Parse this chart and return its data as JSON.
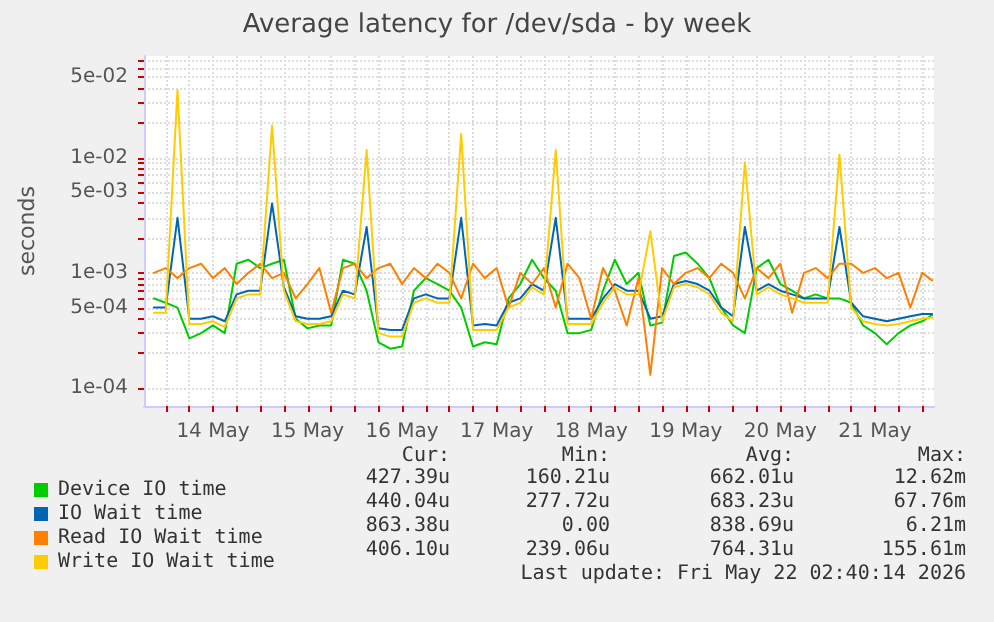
{
  "chart_data": {
    "type": "line",
    "title": "Average latency for /dev/sda - by week",
    "ylabel": "seconds",
    "log": "y",
    "grid": true,
    "legend": "bottom left",
    "marker": "none",
    "line_style": "solid",
    "xlim": [
      "2026-05-13T18:30",
      "2026-05-22T03:00"
    ],
    "xticks": [
      {
        "value": "2026-05-14T00:00",
        "label": null
      },
      {
        "value": "2026-05-14T06:00",
        "label": null
      },
      {
        "value": "2026-05-14T12:00",
        "label": "14 May"
      },
      {
        "value": "2026-05-14T18:00",
        "label": null
      },
      {
        "value": "2026-05-15T00:00",
        "label": null
      },
      {
        "value": "2026-05-15T06:00",
        "label": null
      },
      {
        "value": "2026-05-15T12:00",
        "label": "15 May"
      },
      {
        "value": "2026-05-15T18:00",
        "label": null
      },
      {
        "value": "2026-05-16T00:00",
        "label": null
      },
      {
        "value": "2026-05-16T06:00",
        "label": null
      },
      {
        "value": "2026-05-16T12:00",
        "label": "16 May"
      },
      {
        "value": "2026-05-16T18:00",
        "label": null
      },
      {
        "value": "2026-05-17T00:00",
        "label": null
      },
      {
        "value": "2026-05-17T06:00",
        "label": null
      },
      {
        "value": "2026-05-17T12:00",
        "label": "17 May"
      },
      {
        "value": "2026-05-17T18:00",
        "label": null
      },
      {
        "value": "2026-05-18T00:00",
        "label": null
      },
      {
        "value": "2026-05-18T06:00",
        "label": null
      },
      {
        "value": "2026-05-18T12:00",
        "label": "18 May"
      },
      {
        "value": "2026-05-18T18:00",
        "label": null
      },
      {
        "value": "2026-05-19T00:00",
        "label": null
      },
      {
        "value": "2026-05-19T06:00",
        "label": null
      },
      {
        "value": "2026-05-19T12:00",
        "label": "19 May"
      },
      {
        "value": "2026-05-19T18:00",
        "label": null
      },
      {
        "value": "2026-05-20T00:00",
        "label": null
      },
      {
        "value": "2026-05-20T06:00",
        "label": null
      },
      {
        "value": "2026-05-20T12:00",
        "label": "20 May"
      },
      {
        "value": "2026-05-20T18:00",
        "label": null
      },
      {
        "value": "2026-05-21T00:00",
        "label": null
      },
      {
        "value": "2026-05-21T06:00",
        "label": null
      },
      {
        "value": "2026-05-21T12:00",
        "label": "21 May"
      },
      {
        "value": "2026-05-21T18:00",
        "label": null
      },
      {
        "value": "2026-05-22T00:00",
        "label": null
      }
    ],
    "ylim": [
      7e-05,
      0.076
    ],
    "yticks": [
      {
        "value": 0.0001,
        "label": "1e-04"
      },
      {
        "value": 0.0002,
        "label": null
      },
      {
        "value": 0.0003,
        "label": null
      },
      {
        "value": 0.0004,
        "label": null
      },
      {
        "value": 0.0005,
        "label": "5e-04"
      },
      {
        "value": 0.0006,
        "label": null
      },
      {
        "value": 0.0007,
        "label": null
      },
      {
        "value": 0.0008,
        "label": null
      },
      {
        "value": 0.0009,
        "label": null
      },
      {
        "value": 0.001,
        "label": "1e-03"
      },
      {
        "value": 0.002,
        "label": null
      },
      {
        "value": 0.003,
        "label": null
      },
      {
        "value": 0.004,
        "label": null
      },
      {
        "value": 0.005,
        "label": "5e-03"
      },
      {
        "value": 0.006,
        "label": null
      },
      {
        "value": 0.007,
        "label": null
      },
      {
        "value": 0.008,
        "label": null
      },
      {
        "value": 0.009,
        "label": null
      },
      {
        "value": 0.01,
        "label": "1e-02"
      },
      {
        "value": 0.02,
        "label": null
      },
      {
        "value": 0.03,
        "label": null
      },
      {
        "value": 0.04,
        "label": null
      },
      {
        "value": 0.05,
        "label": "5e-02"
      },
      {
        "value": 0.06,
        "label": null
      },
      {
        "value": 0.07,
        "label": null
      }
    ],
    "x": [
      "2026-05-13T21:00",
      "2026-05-14T00:00",
      "2026-05-14T03:00",
      "2026-05-14T06:00",
      "2026-05-14T09:00",
      "2026-05-14T12:00",
      "2026-05-14T15:00",
      "2026-05-14T18:00",
      "2026-05-14T21:00",
      "2026-05-15T00:00",
      "2026-05-15T03:00",
      "2026-05-15T06:00",
      "2026-05-15T09:00",
      "2026-05-15T12:00",
      "2026-05-15T15:00",
      "2026-05-15T18:00",
      "2026-05-15T21:00",
      "2026-05-16T00:00",
      "2026-05-16T03:00",
      "2026-05-16T06:00",
      "2026-05-16T09:00",
      "2026-05-16T12:00",
      "2026-05-16T15:00",
      "2026-05-16T18:00",
      "2026-05-16T21:00",
      "2026-05-17T00:00",
      "2026-05-17T03:00",
      "2026-05-17T06:00",
      "2026-05-17T09:00",
      "2026-05-17T12:00",
      "2026-05-17T15:00",
      "2026-05-17T18:00",
      "2026-05-17T21:00",
      "2026-05-18T00:00",
      "2026-05-18T03:00",
      "2026-05-18T06:00",
      "2026-05-18T09:00",
      "2026-05-18T12:00",
      "2026-05-18T15:00",
      "2026-05-18T18:00",
      "2026-05-18T21:00",
      "2026-05-19T00:00",
      "2026-05-19T03:00",
      "2026-05-19T06:00",
      "2026-05-19T09:00",
      "2026-05-19T12:00",
      "2026-05-19T15:00",
      "2026-05-19T18:00",
      "2026-05-19T21:00",
      "2026-05-20T00:00",
      "2026-05-20T03:00",
      "2026-05-20T06:00",
      "2026-05-20T09:00",
      "2026-05-20T12:00",
      "2026-05-20T15:00",
      "2026-05-20T18:00",
      "2026-05-20T21:00",
      "2026-05-21T00:00",
      "2026-05-21T03:00",
      "2026-05-21T06:00",
      "2026-05-21T09:00",
      "2026-05-21T12:00",
      "2026-05-21T15:00",
      "2026-05-21T18:00",
      "2026-05-21T21:00",
      "2026-05-22T00:00",
      "2026-05-22T02:30"
    ],
    "series": [
      {
        "name": "Device IO time",
        "color": "#00cc00",
        "values": [
          0.0006,
          0.00055,
          0.0005,
          0.00027,
          0.0003,
          0.00035,
          0.0003,
          0.0012,
          0.0013,
          0.0011,
          0.0012,
          0.0013,
          0.0004,
          0.00033,
          0.00035,
          0.00035,
          0.0013,
          0.0012,
          0.0007,
          0.00025,
          0.00022,
          0.00023,
          0.0007,
          0.0009,
          0.0008,
          0.0007,
          0.0005,
          0.00023,
          0.00025,
          0.00024,
          0.0006,
          0.0008,
          0.0013,
          0.0009,
          0.0007,
          0.0003,
          0.0003,
          0.00032,
          0.0007,
          0.0013,
          0.0008,
          0.001,
          0.00035,
          0.00037,
          0.0014,
          0.0015,
          0.0012,
          0.0009,
          0.0005,
          0.00035,
          0.0003,
          0.0011,
          0.0013,
          0.0008,
          0.0007,
          0.0006,
          0.00065,
          0.0006,
          0.0006,
          0.00055,
          0.00035,
          0.0003,
          0.00024,
          0.0003,
          0.00035,
          0.00038,
          0.00043
        ]
      },
      {
        "name": "IO Wait time",
        "color": "#0066b3",
        "values": [
          0.0005,
          0.0005,
          0.003,
          0.0004,
          0.0004,
          0.00042,
          0.00038,
          0.00065,
          0.0007,
          0.0007,
          0.004,
          0.00075,
          0.00042,
          0.0004,
          0.0004,
          0.00042,
          0.0007,
          0.00065,
          0.0025,
          0.00033,
          0.00032,
          0.00032,
          0.0006,
          0.00065,
          0.0006,
          0.0006,
          0.003,
          0.00035,
          0.00036,
          0.00035,
          0.00055,
          0.0006,
          0.0008,
          0.0007,
          0.003,
          0.0004,
          0.0004,
          0.0004,
          0.0006,
          0.0008,
          0.0007,
          0.0007,
          0.0004,
          0.00042,
          0.0008,
          0.00085,
          0.0008,
          0.0007,
          0.0005,
          0.00042,
          0.0025,
          0.0007,
          0.0008,
          0.0007,
          0.00065,
          0.0006,
          0.0006,
          0.0006,
          0.0025,
          0.00055,
          0.00042,
          0.0004,
          0.00038,
          0.0004,
          0.00042,
          0.00044,
          0.00044
        ]
      },
      {
        "name": "Read IO Wait time",
        "color": "#ff8000",
        "values": [
          0.001,
          0.0011,
          0.0009,
          0.0011,
          0.0012,
          0.0009,
          0.0011,
          0.0008,
          0.001,
          0.0012,
          0.0009,
          0.001,
          0.0006,
          0.0008,
          0.0011,
          0.00045,
          0.0011,
          0.0012,
          0.0009,
          0.0011,
          0.0012,
          0.0008,
          0.0011,
          0.0009,
          0.0012,
          0.001,
          0.0006,
          0.0012,
          0.0009,
          0.0011,
          0.0005,
          0.001,
          0.0008,
          0.0011,
          0.0005,
          0.0012,
          0.0009,
          0.0004,
          0.0011,
          0.0007,
          0.00035,
          0.0009,
          0.00013,
          0.0011,
          0.0008,
          0.001,
          0.0011,
          0.0009,
          0.0012,
          0.001,
          0.0006,
          0.0011,
          0.0009,
          0.0012,
          0.00045,
          0.001,
          0.0011,
          0.0009,
          0.0012,
          0.0012,
          0.001,
          0.0011,
          0.0009,
          0.001,
          0.0005,
          0.001,
          0.00086
        ]
      },
      {
        "name": "Write IO Wait time",
        "color": "#ffcc00",
        "values": [
          0.00045,
          0.00045,
          0.0386,
          0.00036,
          0.00036,
          0.00038,
          0.00034,
          0.0006,
          0.00065,
          0.00065,
          0.019,
          0.0007,
          0.00038,
          0.00036,
          0.00036,
          0.00038,
          0.00065,
          0.0006,
          0.0116,
          0.0003,
          0.00028,
          0.00028,
          0.00055,
          0.0006,
          0.00055,
          0.00055,
          0.016,
          0.00032,
          0.00032,
          0.00032,
          0.0005,
          0.00055,
          0.00075,
          0.00065,
          0.0116,
          0.00036,
          0.00036,
          0.00036,
          0.00055,
          0.00075,
          0.00065,
          0.00065,
          0.0023,
          0.00038,
          0.00075,
          0.0008,
          0.00075,
          0.00065,
          0.00045,
          0.00038,
          0.0091,
          0.00065,
          0.00075,
          0.00065,
          0.0006,
          0.00055,
          0.00055,
          0.00055,
          0.0106,
          0.0005,
          0.00038,
          0.00036,
          0.00035,
          0.00036,
          0.00038,
          0.0004,
          0.00041
        ]
      }
    ],
    "annotations": [
      "Cur:",
      "Min:",
      "Avg:",
      "Max:",
      "427.39u",
      "160.21u",
      "662.01u",
      "12.62m",
      "440.04u",
      "277.72u",
      "683.23u",
      "67.76m",
      "863.38u",
      "0.00",
      "838.69u",
      "6.21m",
      "406.10u",
      "239.06u",
      "764.31u",
      "155.61m",
      "Last update: Fri May 22 02:40:14 2026"
    ]
  }
}
